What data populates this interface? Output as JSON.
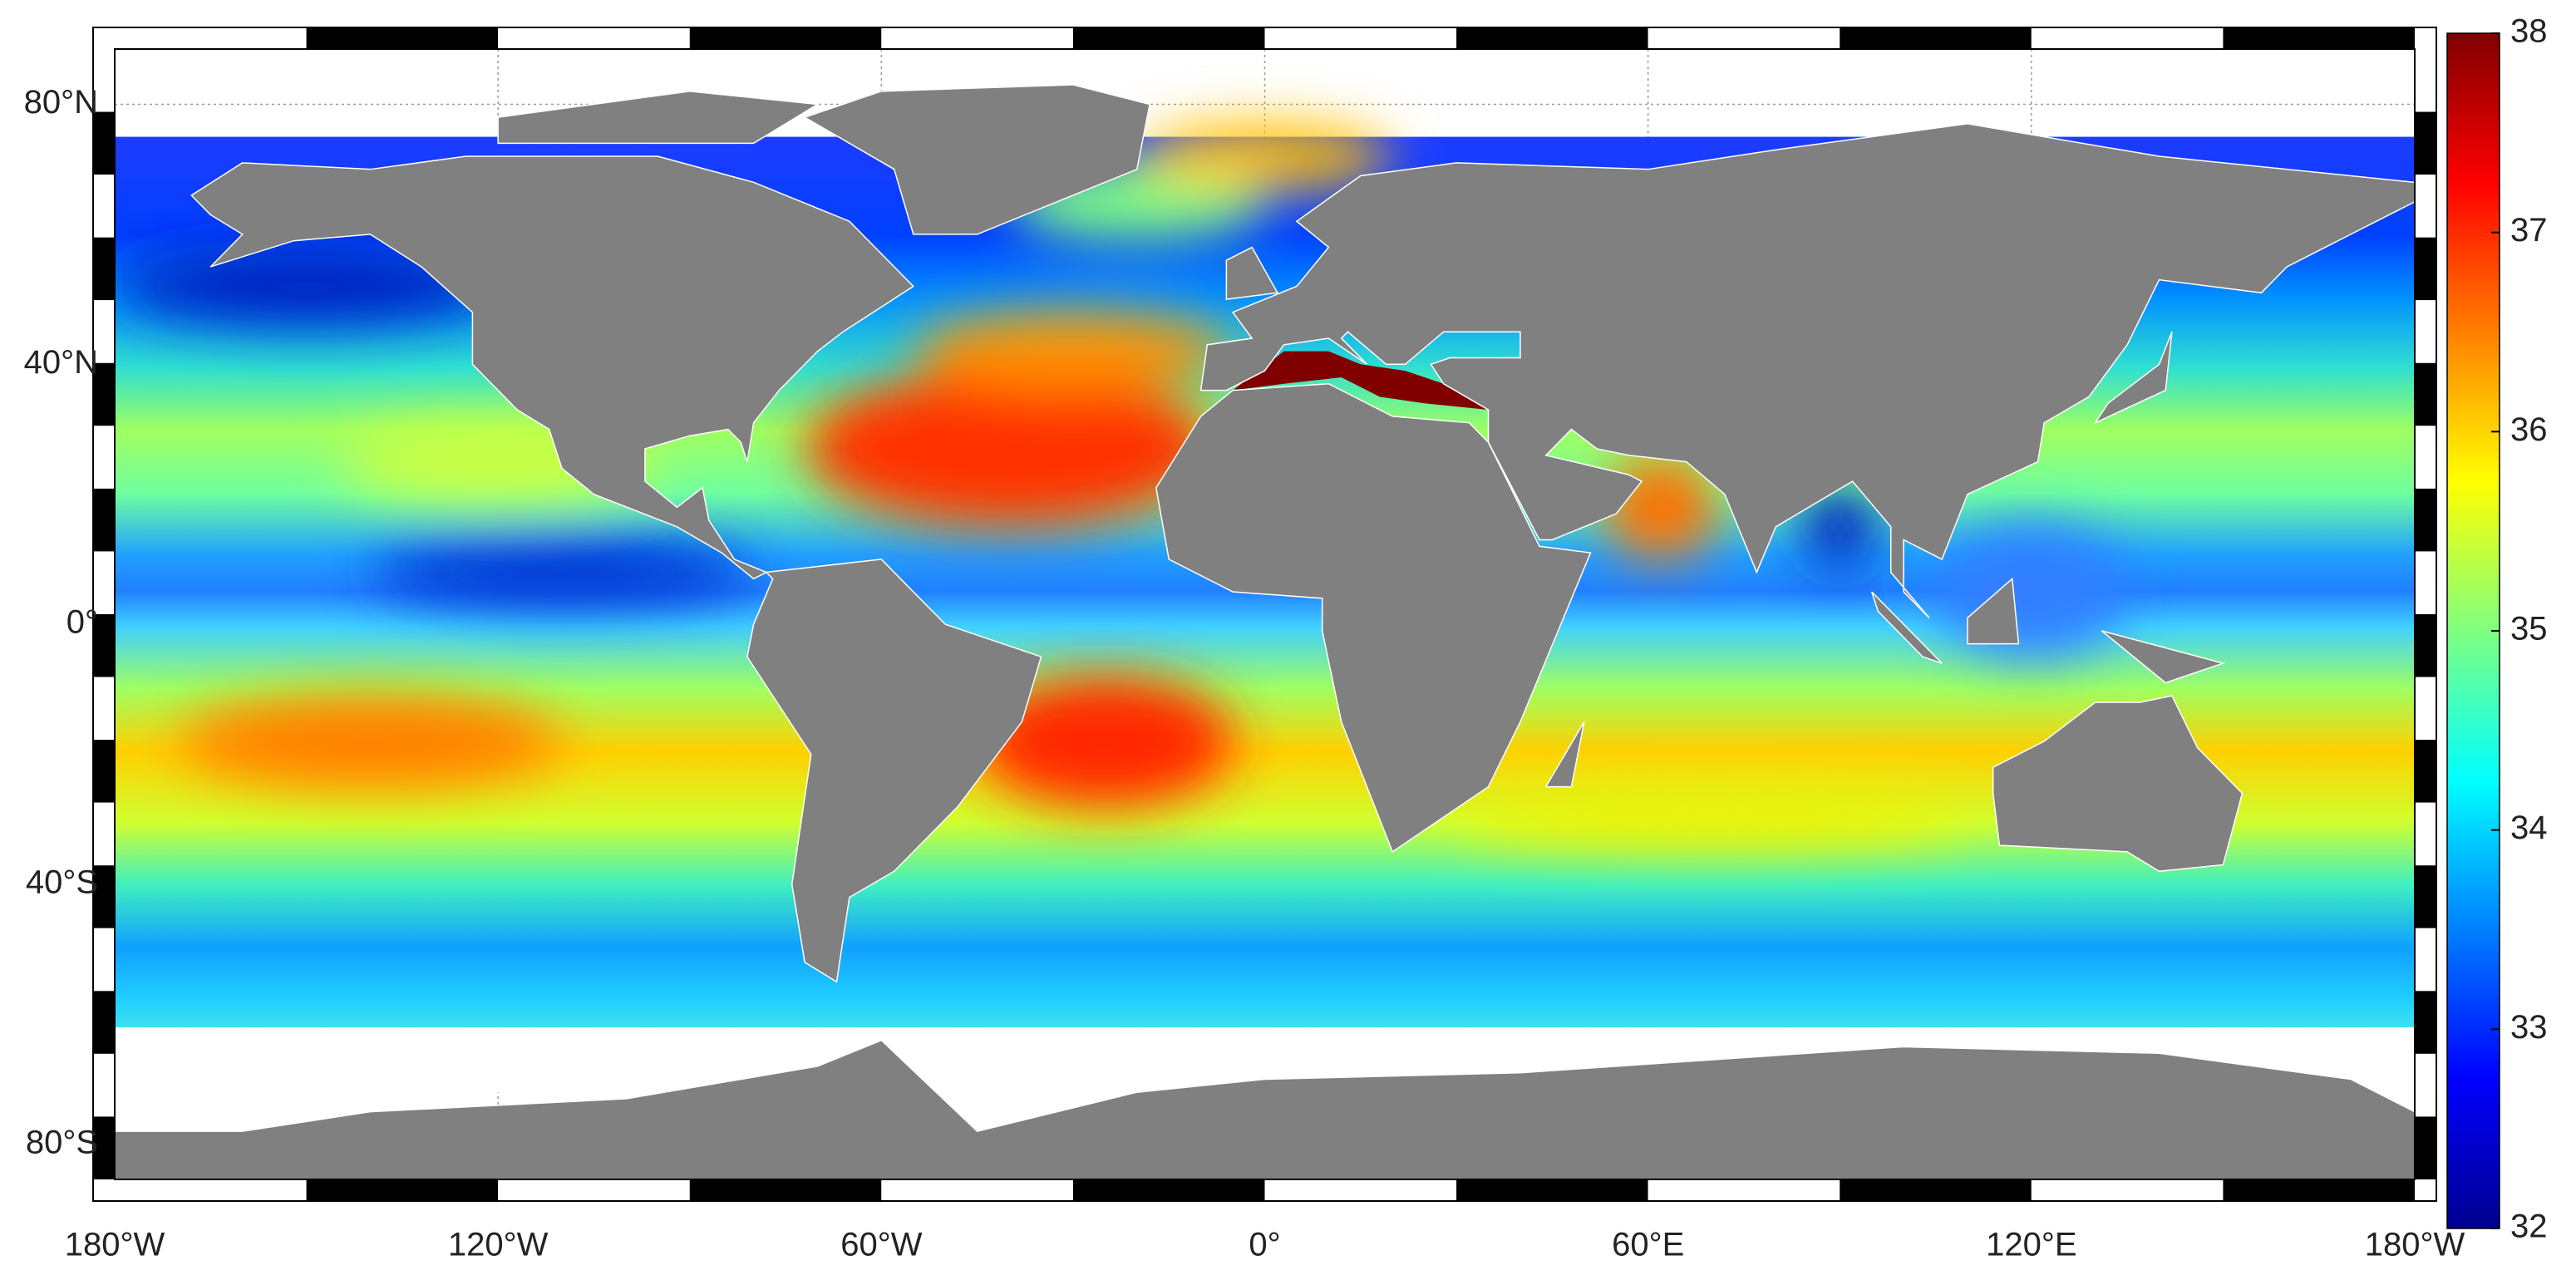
{
  "chart_data": {
    "type": "map",
    "xlim": [
      -180,
      180
    ],
    "ylim": [
      -85.4,
      88.5
    ],
    "xticks": [
      {
        "value": -180,
        "label": "180°W"
      },
      {
        "value": -120,
        "label": "120°W"
      },
      {
        "value": -60,
        "label": "60°W"
      },
      {
        "value": 0,
        "label": "0°"
      },
      {
        "value": 60,
        "label": "60°E"
      },
      {
        "value": 120,
        "label": "120°E"
      },
      {
        "value": 180,
        "label": "180°W"
      }
    ],
    "yticks": [
      {
        "value": -80,
        "label": "80°S"
      },
      {
        "value": -40,
        "label": "40°S"
      },
      {
        "value": 0,
        "label": "0°"
      },
      {
        "value": 40,
        "label": "40°N"
      },
      {
        "value": 80,
        "label": "80°N"
      }
    ],
    "grid": true,
    "colorbar": {
      "clim": [
        32,
        38
      ],
      "ticks": [
        32,
        33,
        34,
        35,
        36,
        37,
        38
      ]
    }
  }
}
